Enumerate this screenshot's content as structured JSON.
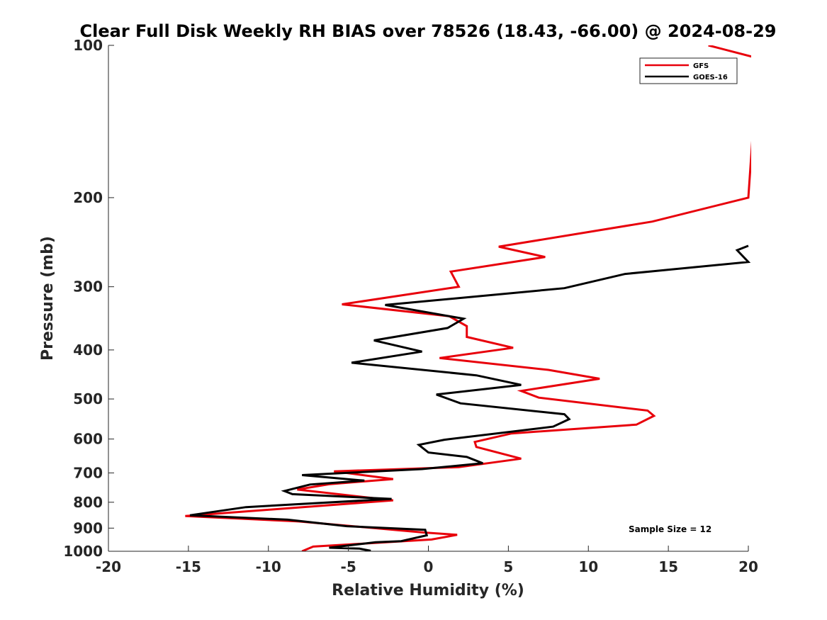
{
  "chart_data": {
    "type": "line",
    "title": "Clear Full Disk Weekly RH BIAS over 78526 (18.43, -66.00) @ 2024-08-29",
    "xlabel": "Relative Humidity (%)",
    "ylabel": "Pressure (mb)",
    "xlim": [
      -20,
      20
    ],
    "ylim": [
      1000,
      100
    ],
    "y_scale": "log",
    "x_ticks": [
      -20,
      -15,
      -10,
      -5,
      0,
      5,
      10,
      15,
      20
    ],
    "x_tick_labels": [
      "-20",
      "-15",
      "-10",
      "-5",
      "0",
      "5",
      "10",
      "15",
      "20"
    ],
    "y_ticks": [
      100,
      200,
      300,
      400,
      500,
      600,
      700,
      800,
      900,
      1000
    ],
    "y_tick_labels": [
      "100",
      "200",
      "300",
      "400",
      "500",
      "600",
      "700",
      "800",
      "900",
      "1000"
    ],
    "grid": false,
    "legend_position": "top-right",
    "annotation": "Sample Size = 12",
    "series": [
      {
        "name": "GFS",
        "color": "#e8000b",
        "points": [
          [
            17.5,
            100
          ],
          [
            20.6,
            106
          ],
          [
            20.0,
            200
          ],
          [
            14.0,
            223
          ],
          [
            4.4,
            250
          ],
          [
            7.3,
            262
          ],
          [
            1.4,
            280
          ],
          [
            1.9,
            300
          ],
          [
            -5.4,
            325
          ],
          [
            1.3,
            343
          ],
          [
            2.4,
            359
          ],
          [
            2.4,
            377
          ],
          [
            5.3,
            396
          ],
          [
            0.7,
            415
          ],
          [
            7.5,
            438
          ],
          [
            10.7,
            456
          ],
          [
            5.8,
            482
          ],
          [
            6.9,
            497
          ],
          [
            13.7,
            527
          ],
          [
            14.1,
            540
          ],
          [
            13.0,
            562
          ],
          [
            5.2,
            585
          ],
          [
            2.9,
            608
          ],
          [
            3.0,
            622
          ],
          [
            5.8,
            656
          ],
          [
            1.9,
            682
          ],
          [
            -5.9,
            695
          ],
          [
            -2.2,
            720
          ],
          [
            -6.2,
            737
          ],
          [
            -8.2,
            755
          ],
          [
            -2.2,
            793
          ],
          [
            -15.2,
            852
          ],
          [
            -8.1,
            873
          ],
          [
            -0.3,
            918
          ],
          [
            1.8,
            928
          ],
          [
            0.2,
            948
          ],
          [
            -7.2,
            979
          ],
          [
            -7.9,
            1000
          ]
        ]
      },
      {
        "name": "GOES-16",
        "color": "#000000",
        "points": [
          [
            20.0,
            249
          ],
          [
            19.3,
            254
          ],
          [
            20.0,
            268
          ],
          [
            12.3,
            283
          ],
          [
            8.5,
            302
          ],
          [
            -2.7,
            326
          ],
          [
            2.2,
            347
          ],
          [
            1.2,
            362
          ],
          [
            -3.4,
            383
          ],
          [
            -0.4,
            403
          ],
          [
            -4.8,
            424
          ],
          [
            3.0,
            449
          ],
          [
            5.8,
            469
          ],
          [
            0.5,
            490
          ],
          [
            2.0,
            510
          ],
          [
            8.5,
            536
          ],
          [
            8.8,
            548
          ],
          [
            7.8,
            567
          ],
          [
            1.0,
            602
          ],
          [
            -0.6,
            616
          ],
          [
            0.0,
            638
          ],
          [
            2.4,
            651
          ],
          [
            3.4,
            670
          ],
          [
            -0.4,
            688
          ],
          [
            -7.9,
            707
          ],
          [
            -4.0,
            725
          ],
          [
            -7.4,
            738
          ],
          [
            -9.0,
            760
          ],
          [
            -8.5,
            771
          ],
          [
            -2.3,
            788
          ],
          [
            -11.4,
            818
          ],
          [
            -14.9,
            849
          ],
          [
            -8.8,
            866
          ],
          [
            -5.1,
            892
          ],
          [
            -0.2,
            907
          ],
          [
            -0.1,
            930
          ],
          [
            -1.7,
            955
          ],
          [
            -3.3,
            960
          ],
          [
            -6.2,
            984
          ],
          [
            -4.3,
            988
          ],
          [
            -3.6,
            998
          ]
        ]
      }
    ]
  }
}
